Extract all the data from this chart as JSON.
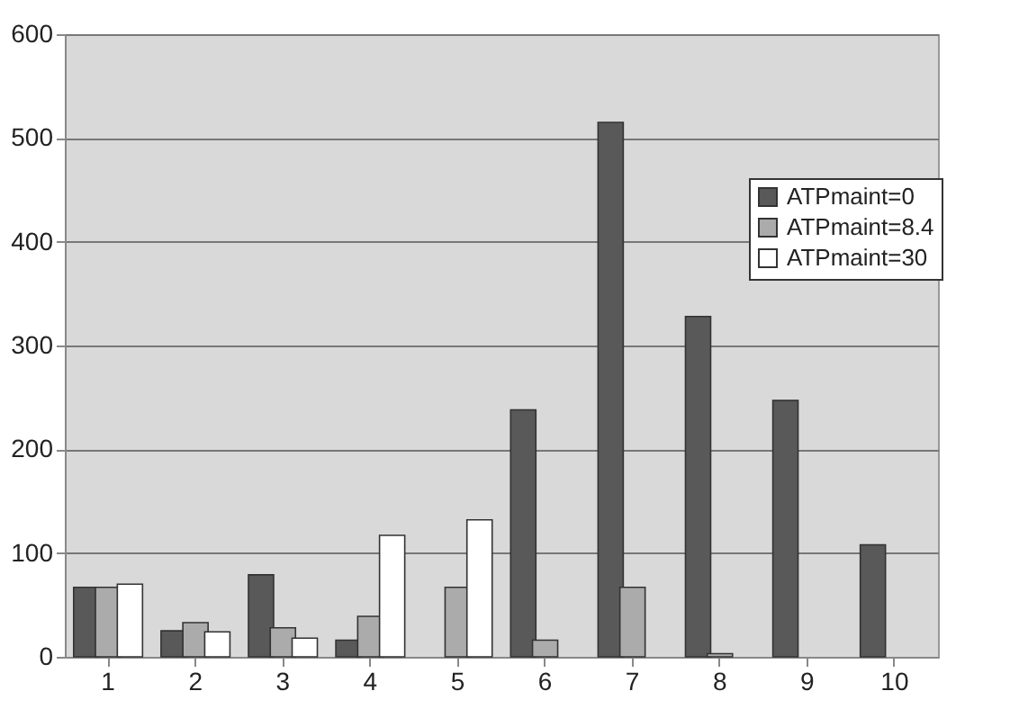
{
  "chart_data": {
    "type": "bar",
    "categories": [
      "1",
      "2",
      "3",
      "4",
      "5",
      "6",
      "7",
      "8",
      "9",
      "10"
    ],
    "series": [
      {
        "name": "ATPmaint=0",
        "color": "#595959",
        "values": [
          67,
          25,
          79,
          16,
          null,
          238,
          515,
          328,
          247,
          108
        ]
      },
      {
        "name": "ATPmaint=8.4",
        "color": "#ababab",
        "values": [
          67,
          33,
          28,
          39,
          67,
          16,
          67,
          3,
          null,
          null
        ]
      },
      {
        "name": "ATPmaint=30",
        "color": "#ffffff",
        "values": [
          70,
          24,
          18,
          117,
          132,
          null,
          null,
          null,
          null,
          null
        ]
      }
    ],
    "ylim": [
      0,
      600
    ],
    "yticks": [
      0,
      100,
      200,
      300,
      400,
      500,
      600
    ],
    "grid": "y",
    "legend": "top right"
  }
}
